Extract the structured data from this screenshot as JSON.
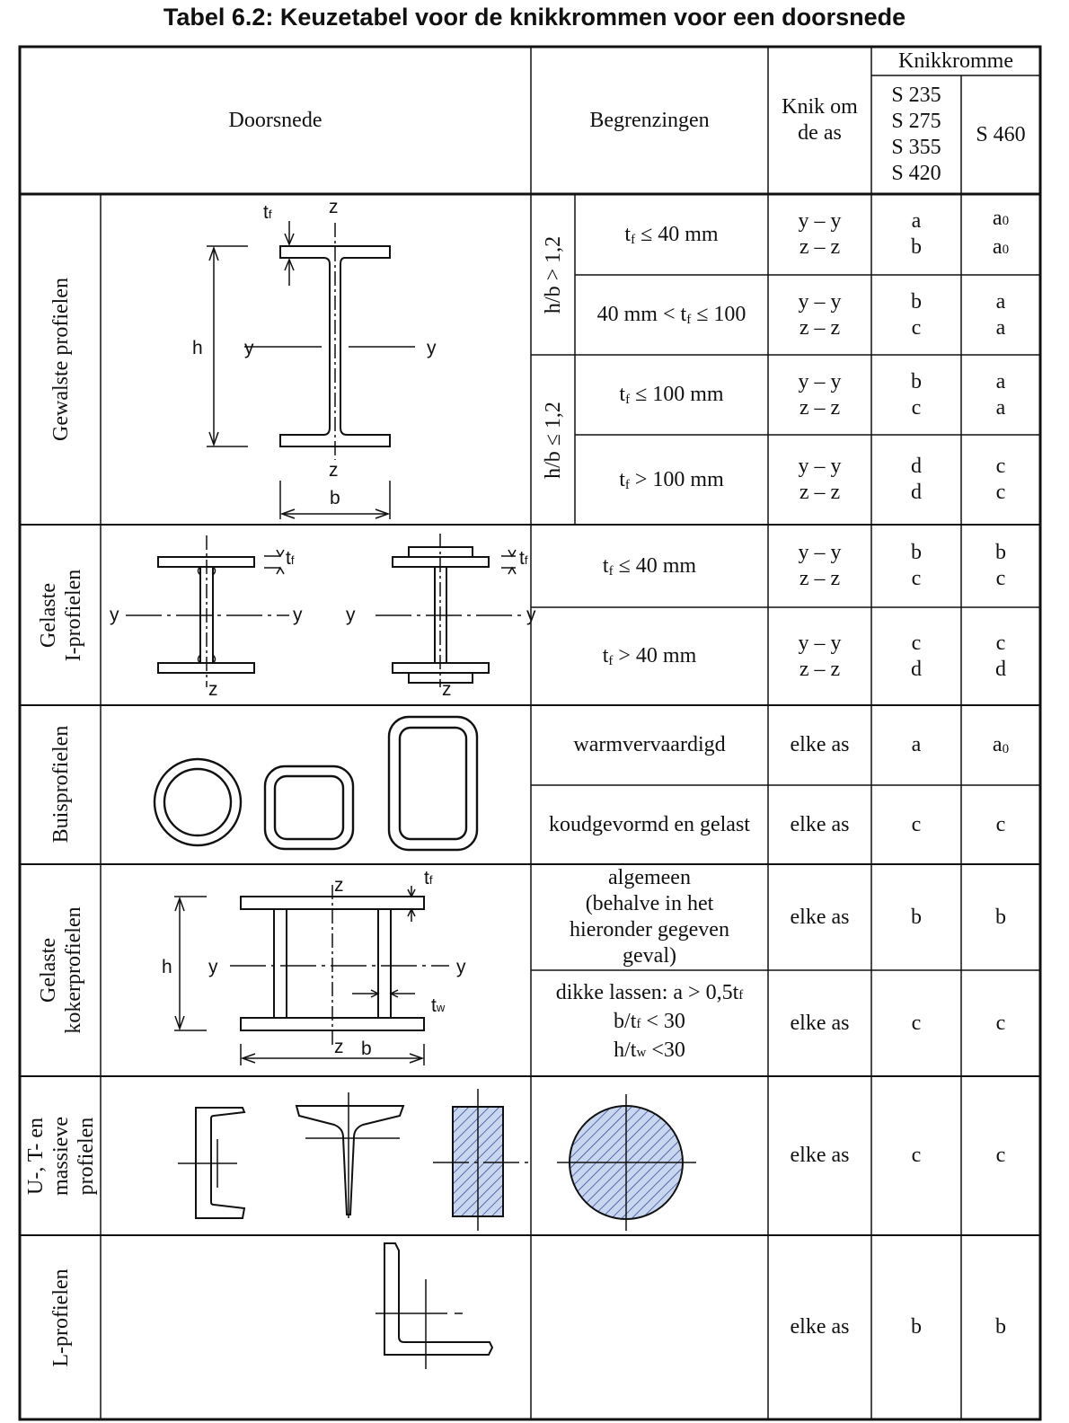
{
  "title": "Tabel 6.2: Keuzetabel voor de knikkrommen voor een doorsnede",
  "header": {
    "doorsnede": "Doorsnede",
    "begrenzingen": "Begrenzingen",
    "knik_line1": "Knik om",
    "knik_line2": "de as",
    "knikkromme": "Knikkromme",
    "steel_grades": [
      "S 235",
      "S 275",
      "S 355",
      "S 420"
    ],
    "s460": "S 460"
  },
  "groups": {
    "gewalst": "Gewalste profielen",
    "gelast_i_1": "Gelaste",
    "gelast_i_2": "I-profielen",
    "buis": "Buisprofielen",
    "koker_1": "Gelaste",
    "koker_2": "kokerprofielen",
    "utm_1": "U-, T- en",
    "utm_2": "massieve",
    "utm_3": "profielen",
    "l": "L-profielen"
  },
  "sub_limits": {
    "hb_gt": "h/b > 1,2",
    "hb_le": "h/b ≤ 1,2"
  },
  "rows": {
    "r1": {
      "pre": "t",
      "sub": "f",
      "post": "≤ 40 mm",
      "axis1": "y – y",
      "axis2": "z – z",
      "c1a": "a",
      "c1b": "b",
      "c2a": "a",
      "c2a_sub": "0",
      "c2b": "a",
      "c2b_sub": "0"
    },
    "r2": {
      "pre": "40 mm < t",
      "sub": "f",
      "post": "≤ 100",
      "axis1": "y – y",
      "axis2": "z – z",
      "c1a": "b",
      "c1b": "c",
      "c2a": "a",
      "c2b": "a"
    },
    "r3": {
      "pre": "t",
      "sub": "f",
      "post": "≤ 100 mm",
      "axis1": "y – y",
      "axis2": "z – z",
      "c1a": "b",
      "c1b": "c",
      "c2a": "a",
      "c2b": "a"
    },
    "r4": {
      "pre": "t",
      "sub": "f",
      "post": "> 100 mm",
      "axis1": "y – y",
      "axis2": "z – z",
      "c1a": "d",
      "c1b": "d",
      "c2a": "c",
      "c2b": "c"
    },
    "r5": {
      "pre": "t",
      "sub": "f",
      "post": "≤ 40 mm",
      "axis1": "y – y",
      "axis2": "z – z",
      "c1a": "b",
      "c1b": "c",
      "c2a": "b",
      "c2b": "c"
    },
    "r6": {
      "pre": "t",
      "sub": "f",
      "post": "> 40 mm",
      "axis1": "y – y",
      "axis2": "z – z",
      "c1a": "c",
      "c1b": "d",
      "c2a": "c",
      "c2b": "d"
    },
    "r7": {
      "text": "warmvervaardigd",
      "axis": "elke as",
      "c1": "a",
      "c2": "a",
      "c2_sub": "0"
    },
    "r8": {
      "text": "koudgevormd en gelast",
      "axis": "elke as",
      "c1": "c",
      "c2": "c"
    },
    "r9": {
      "l1": "algemeen",
      "l2": "(behalve in het",
      "l3": "hieronder gegeven",
      "l4": "geval)",
      "axis": "elke as",
      "c1": "b",
      "c2": "b"
    },
    "r10": {
      "l1": "dikke lassen: a > 0,5t",
      "l1_sub": "f",
      "l2": "b/t",
      "l2_sub": "f",
      "l2_post": "< 30",
      "l3": "h/t",
      "l3_sub": "w",
      "l3_post": "<30",
      "axis": "elke as",
      "c1": "c",
      "c2": "c"
    },
    "r11": {
      "axis": "elke as",
      "c1": "c",
      "c2": "c"
    },
    "r12": {
      "axis": "elke as",
      "c1": "b",
      "c2": "b"
    }
  },
  "fig": {
    "t": "t",
    "f": "f",
    "w": "w",
    "z": "z",
    "y": "y",
    "h": "h",
    "b": "b"
  }
}
